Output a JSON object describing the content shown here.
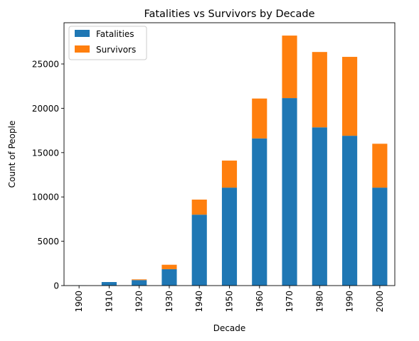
{
  "chart_data": {
    "type": "bar",
    "stacked": true,
    "title": "Fatalities vs Survivors by Decade",
    "xlabel": "Decade",
    "ylabel": "Count of People",
    "categories": [
      "1900",
      "1910",
      "1920",
      "1930",
      "1940",
      "1950",
      "1960",
      "1970",
      "1980",
      "1990",
      "2000"
    ],
    "series": [
      {
        "name": "Fatalities",
        "color": "#1f77b4",
        "values": [
          20,
          400,
          620,
          1850,
          8000,
          11050,
          16600,
          21150,
          17850,
          16900,
          11050
        ]
      },
      {
        "name": "Survivors",
        "color": "#ff7f0e",
        "values": [
          0,
          0,
          80,
          500,
          1700,
          3050,
          4500,
          7050,
          8500,
          8900,
          4950
        ]
      }
    ],
    "yticks": [
      0,
      5000,
      10000,
      15000,
      20000,
      25000
    ],
    "ylim": [
      0,
      29650
    ],
    "grid": false,
    "legend_position": "upper-left"
  }
}
